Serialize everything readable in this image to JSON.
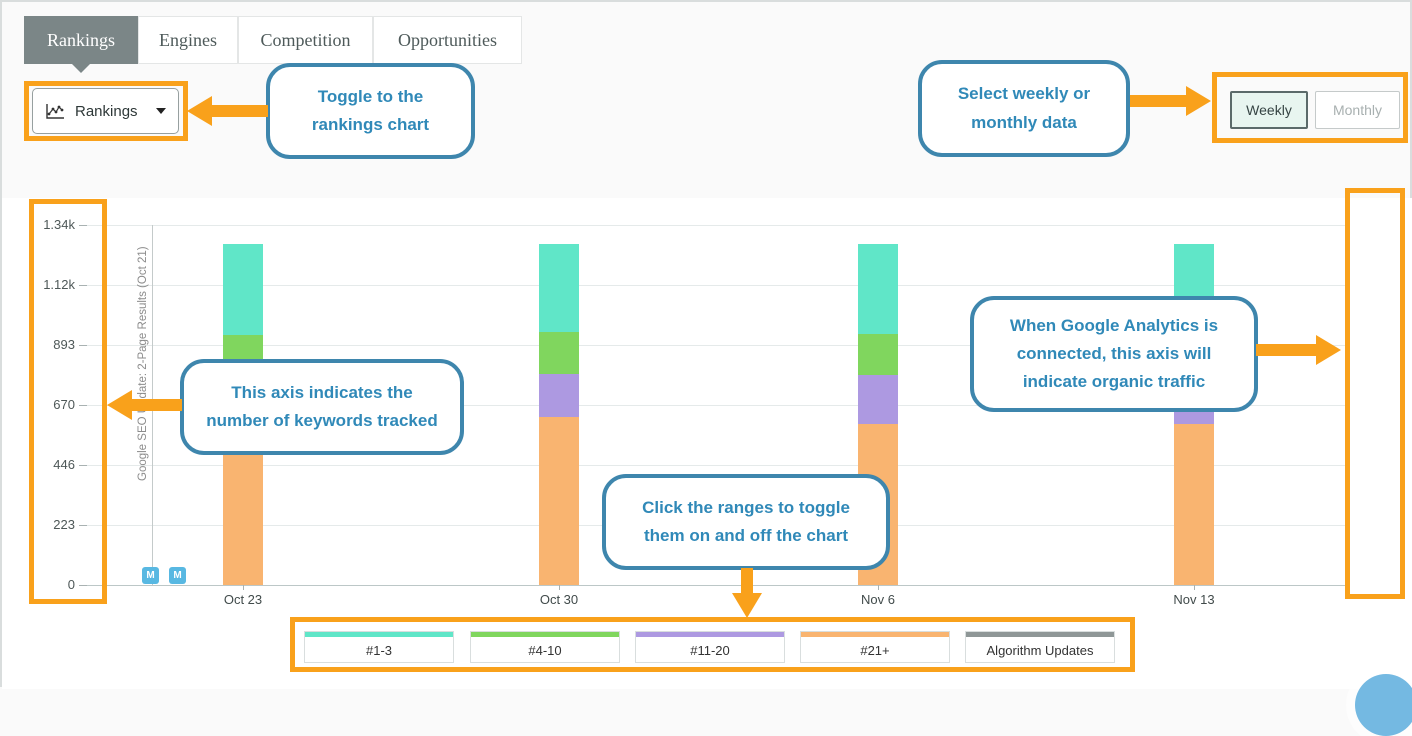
{
  "tabs": {
    "items": [
      {
        "label": "Rankings",
        "selected": true
      },
      {
        "label": "Engines",
        "selected": false
      },
      {
        "label": "Competition",
        "selected": false
      },
      {
        "label": "Opportunities",
        "selected": false
      }
    ]
  },
  "chart_selector": {
    "value": "Rankings",
    "icon": "line-chart-icon"
  },
  "period_toggle": {
    "options": [
      {
        "label": "Weekly",
        "selected": true
      },
      {
        "label": "Monthly",
        "selected": false
      }
    ]
  },
  "annotations": {
    "accent_color": "#F9A11B",
    "callout_border_color": "#3E86AD",
    "callout_text_color": "#3089B8",
    "toggle_chart": "Toggle to the rankings chart",
    "select_period": "Select weekly or monthly data",
    "left_axis": "This axis indicates the number of keywords tracked",
    "legend_toggle": "Click the ranges to toggle them on and off the chart",
    "right_axis": "When Google Analytics is connected, this axis will indicate organic traffic"
  },
  "chart_data": {
    "type": "bar",
    "stacked": true,
    "title": "",
    "xlabel": "",
    "ylabel": "number of keywords tracked",
    "ylim": [
      0,
      1340
    ],
    "grid": true,
    "legend_position": "bottom",
    "categories": [
      "Oct 23",
      "Oct 30",
      "Nov 6",
      "Nov 13"
    ],
    "series": [
      {
        "name": "#1-3",
        "color": "#60e6c8",
        "values": [
          340,
          330,
          335,
          340
        ]
      },
      {
        "name": "#4-10",
        "color": "#80d65e",
        "values": [
          150,
          155,
          155,
          150
        ]
      },
      {
        "name": "#11-20",
        "color": "#ad99e1",
        "values": [
          290,
          160,
          180,
          180
        ]
      },
      {
        "name": "#21+",
        "color": "#f9b470",
        "values": [
          490,
          625,
          600,
          600
        ]
      }
    ],
    "yticks": [
      "1.34k",
      "1.12k",
      "893",
      "670",
      "446",
      "223",
      "0"
    ],
    "ytick_values": [
      1340,
      1117,
      893,
      670,
      446,
      223,
      0
    ],
    "annotation": {
      "label": "Google SEO Update: 2-Page Results (Oct 21)",
      "markers": [
        "M",
        "M"
      ]
    },
    "legend": [
      {
        "label": "#1-3",
        "color": "#60e6c8"
      },
      {
        "label": "#4-10",
        "color": "#80d65e"
      },
      {
        "label": "#11-20",
        "color": "#ad99e1"
      },
      {
        "label": "#21+",
        "color": "#f9b470"
      },
      {
        "label": "Algorithm Updates",
        "color": "#8f9797"
      }
    ]
  }
}
